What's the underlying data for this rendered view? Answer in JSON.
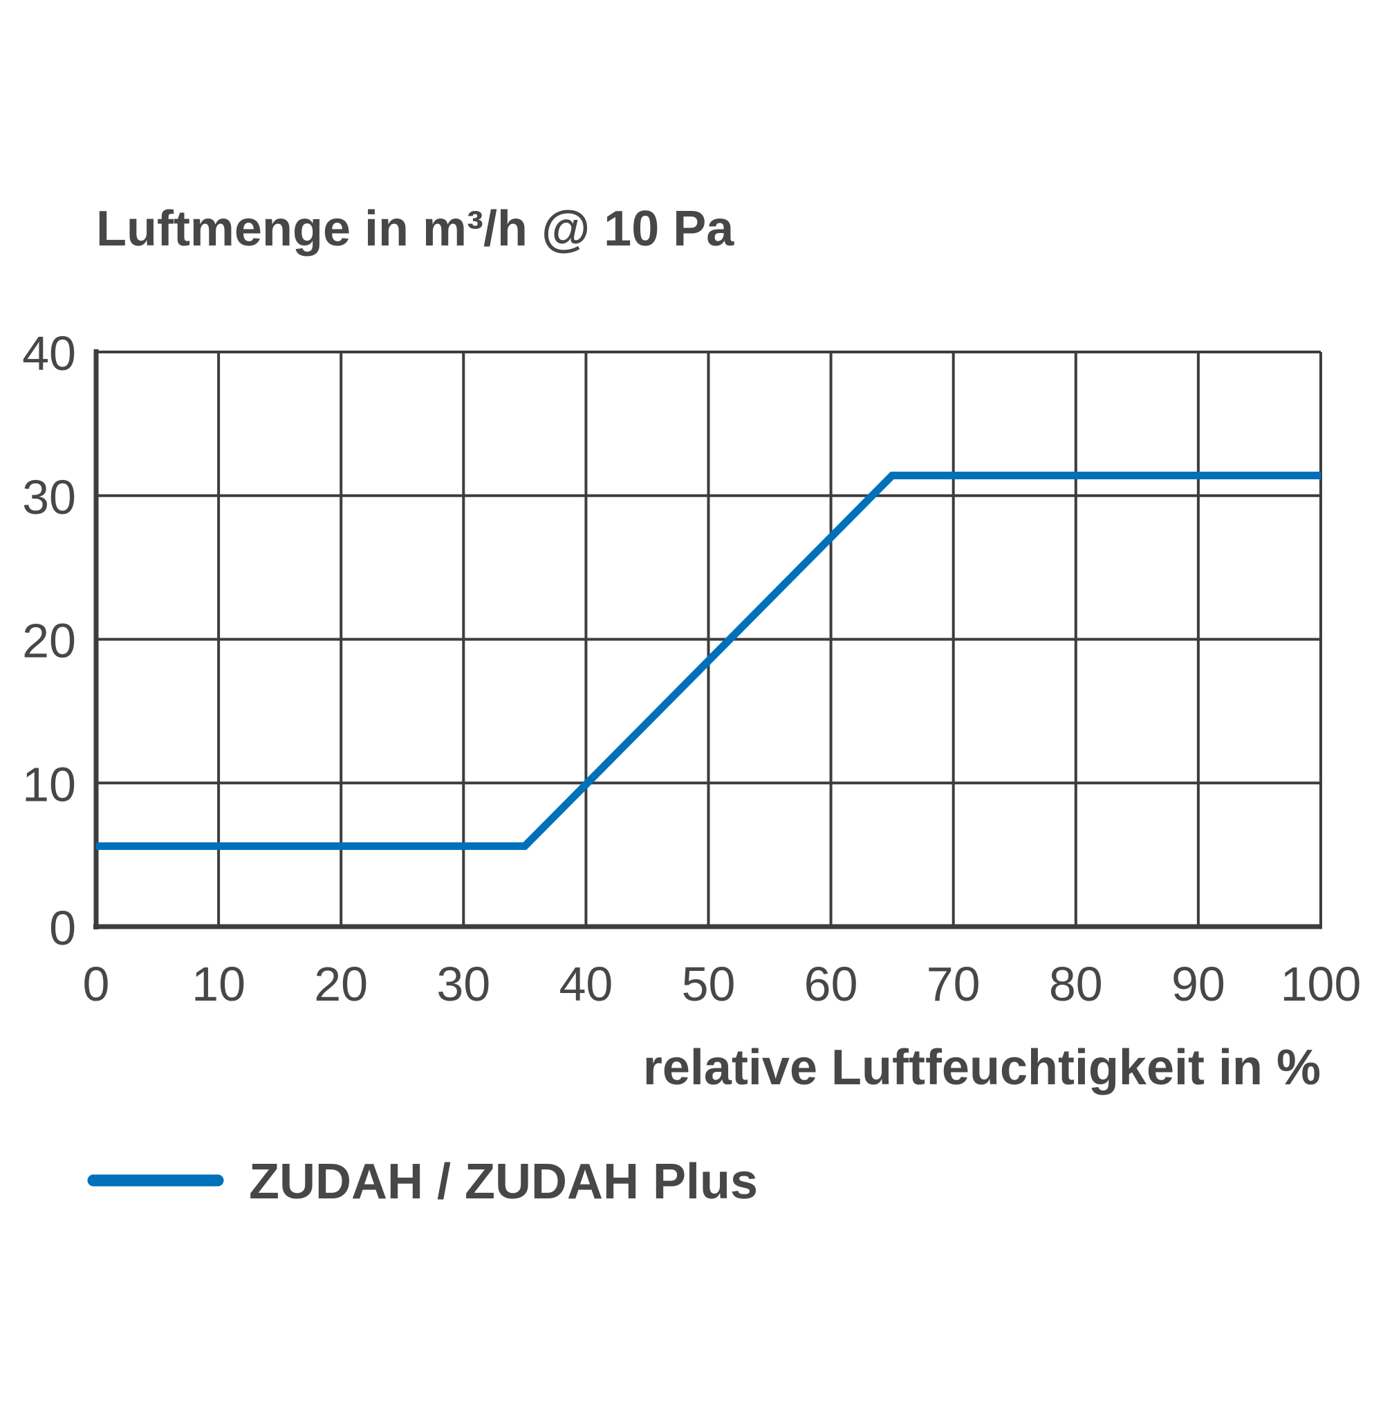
{
  "chart_data": {
    "type": "line",
    "ylabel": "Luftmenge in m³/h @ 10 Pa",
    "xlabel": "relative Luftfeuchtigkeit in %",
    "xlim": [
      0,
      100
    ],
    "ylim": [
      0,
      40
    ],
    "x_ticks": [
      "0",
      "10",
      "20",
      "30",
      "40",
      "50",
      "60",
      "70",
      "80",
      "90",
      "100"
    ],
    "y_ticks": [
      "0",
      "10",
      "20",
      "30",
      "40"
    ],
    "grid": true,
    "legend_position": "bottom-left",
    "series": [
      {
        "name": "ZUDAH / ZUDAH Plus",
        "color": "#0070BA",
        "x": [
          0,
          35,
          65,
          100
        ],
        "y": [
          5.6,
          5.6,
          31.4,
          31.4
        ]
      }
    ]
  },
  "colors": {
    "text": "#474747",
    "grid": "#3d3d3d",
    "series": "#0070BA"
  }
}
